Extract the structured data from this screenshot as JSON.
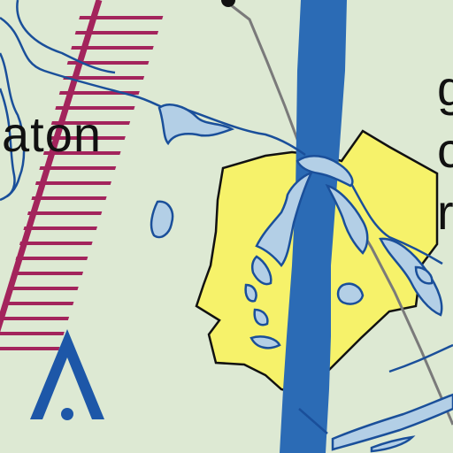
{
  "map": {
    "town_label": "aton",
    "right_labels": [
      "g",
      "c",
      "r"
    ],
    "airspace_symbol": "restricted-airspace-hatch",
    "navaid_symbol": "aerodrome-a-icon",
    "colors": {
      "background": "#dde9d3",
      "river": "#2b6bb5",
      "water_fill": "#b3cfe6",
      "water_outline": "#1a4f9a",
      "restricted_hatch": "#a3245c",
      "populated_area": "#f6f26a",
      "road": "#7a7a7a",
      "symbol": "#1d57a8"
    }
  }
}
